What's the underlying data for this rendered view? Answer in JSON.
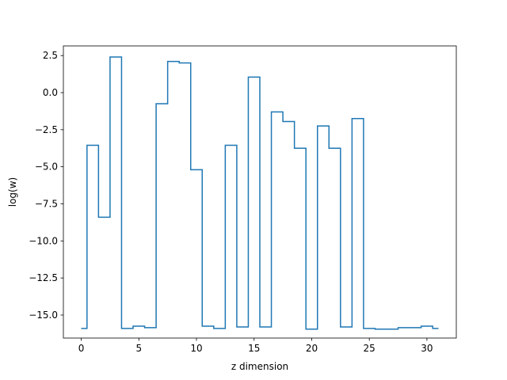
{
  "chart_data": {
    "type": "step",
    "title": "",
    "xlabel": "z dimension",
    "ylabel": "log(w)",
    "xlim": [
      -1.55,
      32.55
    ],
    "ylim": [
      -16.55,
      3.15
    ],
    "x_ticks": [
      0,
      5,
      10,
      15,
      20,
      25,
      30
    ],
    "x_tick_labels": [
      "0",
      "5",
      "10",
      "15",
      "20",
      "25",
      "30"
    ],
    "y_ticks": [
      -15.0,
      -12.5,
      -10.0,
      -7.5,
      -5.0,
      -2.5,
      0.0,
      2.5
    ],
    "y_tick_labels": [
      "−15.0",
      "−12.5",
      "−10.0",
      "−7.5",
      "−5.0",
      "−2.5",
      "0.0",
      "2.5"
    ],
    "grid": false,
    "step_where": "mid",
    "series": [
      {
        "color": "#1f77b4",
        "x": [
          0,
          1,
          2,
          3,
          4,
          5,
          6,
          7,
          8,
          9,
          10,
          11,
          12,
          13,
          14,
          15,
          16,
          17,
          18,
          19,
          20,
          21,
          22,
          23,
          24,
          25,
          26,
          27,
          28,
          29,
          30,
          31
        ],
        "y": [
          -15.9,
          -3.55,
          -8.4,
          2.4,
          -15.9,
          -15.75,
          -15.85,
          -0.75,
          2.1,
          2.0,
          -5.2,
          -15.75,
          -15.9,
          -3.55,
          -15.8,
          1.05,
          -15.8,
          -1.3,
          -1.95,
          -3.75,
          -15.95,
          -2.25,
          -3.75,
          -15.8,
          -1.75,
          -15.9,
          -15.95,
          -15.95,
          -15.85,
          -15.85,
          -15.75,
          -15.9
        ]
      }
    ]
  }
}
